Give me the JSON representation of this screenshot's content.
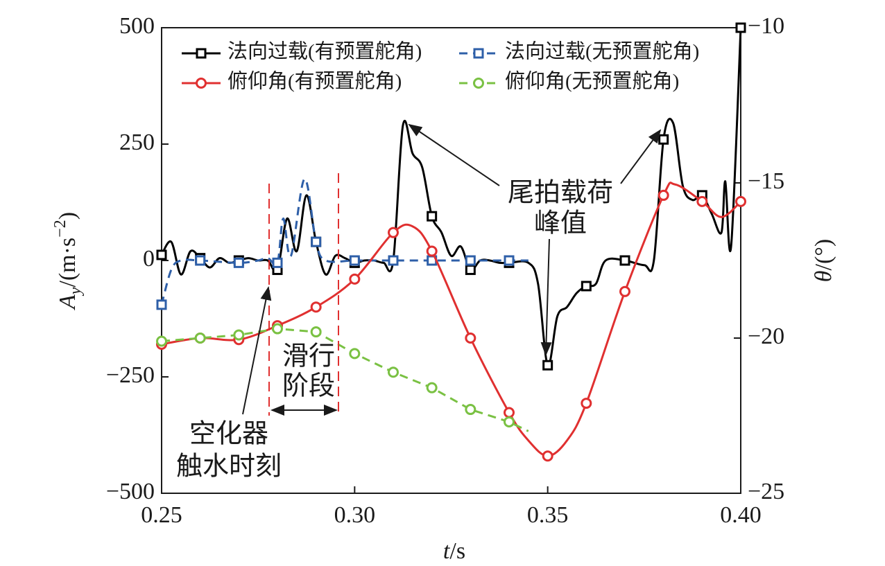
{
  "chart_data": {
    "type": "line",
    "xlabel": [
      "t",
      "/s"
    ],
    "ylabel": [
      "A",
      "y",
      "/(m·s",
      "−2",
      ")"
    ],
    "y2label": [
      "θ",
      "/(°)"
    ],
    "xlim": [
      0.25,
      0.4
    ],
    "xticks": [
      {
        "value": 0.25,
        "label": "0.25"
      },
      {
        "value": 0.3,
        "label": "0.30"
      },
      {
        "value": 0.35,
        "label": "0.35"
      },
      {
        "value": 0.4,
        "label": "0.40"
      }
    ],
    "ylim": [
      -500,
      500
    ],
    "yticks": [
      500,
      250,
      0,
      {
        "value": -250,
        "label": "−250"
      },
      {
        "value": -500,
        "label": "−500"
      }
    ],
    "y2lim": [
      -25,
      -10
    ],
    "y2ticks": [
      {
        "value": -10,
        "label": "−10"
      },
      {
        "value": -15,
        "label": "−15"
      },
      {
        "value": -20,
        "label": "−20"
      },
      {
        "value": -25,
        "label": "−25"
      }
    ],
    "annotations": [
      "滑行",
      "阶段",
      "空化器",
      "触水时刻",
      "尾拍载荷",
      "峰值"
    ],
    "series": [
      {
        "name": "法向过载(有预置舵角)",
        "color": "#000000",
        "linestyle": "solid",
        "marker": "square",
        "smooth": true,
        "x": [
          0.25,
          0.2525,
          0.255,
          0.2575,
          0.26,
          0.2625,
          0.265,
          0.2675,
          0.27,
          0.2725,
          0.275,
          0.2775,
          0.28,
          0.2825,
          0.285,
          0.2875,
          0.29,
          0.2925,
          0.295,
          0.2975,
          0.3,
          0.3025,
          0.305,
          0.3075,
          0.31,
          0.3125,
          0.315,
          0.3175,
          0.32,
          0.3225,
          0.325,
          0.3275,
          0.33,
          0.3325,
          0.335,
          0.3375,
          0.34,
          0.345,
          0.3475,
          0.35,
          0.3525,
          0.355,
          0.3575,
          0.36,
          0.3625,
          0.365,
          0.37,
          0.375,
          0.3775,
          0.38,
          0.3825,
          0.385,
          0.3875,
          0.39,
          0.3925,
          0.395,
          0.396,
          0.3975,
          0.4
        ],
        "values": [
          12,
          40,
          -30,
          20,
          5,
          -15,
          5,
          -5,
          0,
          5,
          0,
          0,
          -20,
          90,
          20,
          140,
          40,
          -30,
          10,
          5,
          -5,
          0,
          0,
          -5,
          0,
          290,
          230,
          200,
          95,
          60,
          10,
          30,
          -20,
          0,
          0,
          -5,
          -5,
          -5,
          -50,
          -225,
          -120,
          -100,
          -70,
          -55,
          -50,
          0,
          0,
          -10,
          0,
          260,
          295,
          160,
          130,
          140,
          100,
          60,
          170,
          30,
          500
        ]
      },
      {
        "name": "法向过载(无预置舵角)",
        "color": "#2e5fa8",
        "linestyle": "dashed",
        "marker": "square",
        "smooth": true,
        "x": [
          0.25,
          0.2525,
          0.255,
          0.26,
          0.27,
          0.275,
          0.2775,
          0.28,
          0.2815,
          0.2835,
          0.287,
          0.29,
          0.2925,
          0.3,
          0.31,
          0.32,
          0.33,
          0.34,
          0.345
        ],
        "values": [
          -95,
          -20,
          0,
          0,
          -5,
          0,
          5,
          -5,
          90,
          10,
          175,
          40,
          0,
          0,
          0,
          0,
          0,
          0,
          0
        ]
      },
      {
        "name": "俯仰角(有预置舵角)",
        "color": "#e03030",
        "linestyle": "solid",
        "marker": "circle",
        "smooth": true,
        "axis": "y2",
        "x": [
          0.25,
          0.26,
          0.27,
          0.28,
          0.29,
          0.3,
          0.31,
          0.315,
          0.32,
          0.33,
          0.34,
          0.345,
          0.35,
          0.355,
          0.36,
          0.37,
          0.38,
          0.383,
          0.39,
          0.395,
          0.4
        ],
        "values": [
          -20.2,
          -20.0,
          -20.05,
          -19.6,
          -19.0,
          -18.1,
          -16.6,
          -16.4,
          -17.2,
          -20.0,
          -22.4,
          -23.3,
          -23.8,
          -23.3,
          -22.1,
          -18.5,
          -15.4,
          -15.05,
          -15.6,
          -16.1,
          -15.6
        ]
      },
      {
        "name": "俯仰角(无预置舵角)",
        "color": "#7ac143",
        "linestyle": "dashed",
        "marker": "circle",
        "smooth": false,
        "axis": "y2",
        "x": [
          0.25,
          0.26,
          0.27,
          0.28,
          0.29,
          0.3,
          0.31,
          0.32,
          0.33,
          0.34,
          0.345
        ],
        "values": [
          -20.1,
          -20.0,
          -19.9,
          -19.7,
          -19.8,
          -20.5,
          -21.1,
          -21.6,
          -22.3,
          -22.7,
          -23.0
        ]
      }
    ]
  }
}
